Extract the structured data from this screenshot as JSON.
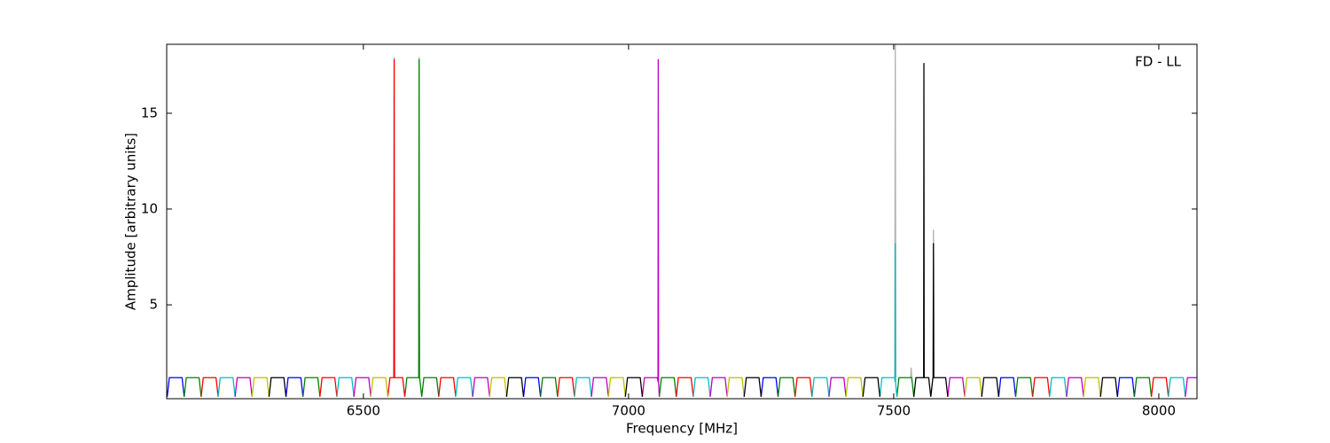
{
  "chart_data": {
    "type": "line",
    "xlabel": "Frequency [MHz]",
    "ylabel": "Amplitude [arbitrary units]",
    "annotation": "FD - LL",
    "xlim": [
      6129,
      8072
    ],
    "ylim": [
      0.1,
      18.6
    ],
    "xticks": [
      6500,
      7000,
      7500,
      8000
    ],
    "yticks": [
      5,
      10,
      15
    ],
    "series": [
      {
        "color": "#b0b0b0",
        "x": [
          6557,
          6558,
          6559,
          null,
          6604,
          6605,
          6606,
          null,
          7502,
          7503,
          7504,
          null,
          7532,
          7533,
          7534,
          null,
          7574,
          7575,
          7576
        ],
        "values": [
          1.2,
          17.9,
          1.2,
          null,
          1.2,
          17.9,
          1.2,
          null,
          1.2,
          18.6,
          1.2,
          null,
          1.2,
          1.7,
          1.2,
          null,
          1.2,
          8.9,
          1.2
        ]
      },
      {
        "color": "#0000ff",
        "x": [
          6130,
          6134,
          6158,
          6162,
          null,
          6354,
          6358,
          6382,
          6386,
          null,
          6802,
          6806,
          6830,
          6834,
          null,
          7250,
          7254,
          7278,
          7282,
          null,
          7698,
          7702,
          7726,
          7730,
          null,
          7922,
          7926,
          7950,
          7954
        ],
        "values": [
          0.2,
          1.2,
          1.2,
          0.2,
          null,
          0.2,
          1.2,
          1.2,
          0.2,
          null,
          0.2,
          1.2,
          1.2,
          0.2,
          null,
          0.2,
          1.2,
          1.2,
          0.2,
          null,
          0.2,
          1.2,
          1.2,
          0.2,
          null,
          0.2,
          1.2,
          1.2,
          0.2
        ]
      },
      {
        "color": "#008000",
        "x": [
          6162,
          6166,
          6190,
          6194,
          null,
          6386,
          6390,
          6414,
          6418,
          null,
          6578,
          6582,
          6604.5,
          6605,
          6605.5,
          6606,
          6610,
          null,
          6610,
          6614,
          6638,
          6642,
          null,
          6834,
          6838,
          6862,
          6866,
          null,
          7058,
          7062,
          7086,
          7090,
          null,
          7282,
          7286,
          7310,
          7314,
          null,
          7506,
          7510,
          7534,
          7538,
          null,
          7730,
          7734,
          7758,
          7762,
          null,
          7954,
          7958,
          7982,
          7986
        ],
        "values": [
          0.2,
          1.2,
          1.2,
          0.2,
          null,
          0.2,
          1.2,
          1.2,
          0.2,
          null,
          0.2,
          1.2,
          1.2,
          17.8,
          1.2,
          1.2,
          0.2,
          null,
          0.2,
          1.2,
          1.2,
          0.2,
          null,
          0.2,
          1.2,
          1.2,
          0.2,
          null,
          0.2,
          1.2,
          1.2,
          0.2,
          null,
          0.2,
          1.2,
          1.2,
          0.2,
          null,
          0.2,
          1.2,
          1.2,
          0.2,
          null,
          0.2,
          1.2,
          1.2,
          0.2,
          null,
          0.2,
          1.2,
          1.2,
          0.2
        ]
      },
      {
        "color": "#ff0000",
        "x": [
          6194,
          6198,
          6222,
          6226,
          null,
          6418,
          6422,
          6446,
          6450,
          null,
          6546,
          6550,
          6557.5,
          6558,
          6558.5,
          6574,
          6578,
          null,
          6642,
          6646,
          6670,
          6674,
          null,
          6866,
          6870,
          6894,
          6898,
          null,
          7090,
          7094,
          7118,
          7122,
          null,
          7314,
          7318,
          7342,
          7346,
          null,
          7762,
          7766,
          7790,
          7794,
          null,
          7986,
          7990,
          8014,
          8018
        ],
        "values": [
          0.2,
          1.2,
          1.2,
          0.2,
          null,
          0.2,
          1.2,
          1.2,
          0.2,
          null,
          0.2,
          1.2,
          1.2,
          17.8,
          1.2,
          1.2,
          0.2,
          null,
          0.2,
          1.2,
          1.2,
          0.2,
          null,
          0.2,
          1.2,
          1.2,
          0.2,
          null,
          0.2,
          1.2,
          1.2,
          0.2,
          null,
          0.2,
          1.2,
          1.2,
          0.2,
          null,
          0.2,
          1.2,
          1.2,
          0.2,
          null,
          0.2,
          1.2,
          1.2,
          0.2
        ]
      },
      {
        "color": "#00bfbf",
        "x": [
          6226,
          6230,
          6254,
          6258,
          null,
          6450,
          6454,
          6478,
          6482,
          null,
          6674,
          6678,
          6702,
          6706,
          null,
          6898,
          6902,
          6926,
          6930,
          null,
          7122,
          7126,
          7150,
          7154,
          null,
          7346,
          7350,
          7374,
          7378,
          null,
          7474,
          7478,
          7502,
          7502.5,
          7503,
          7503.5,
          7506,
          null,
          7794,
          7798,
          7822,
          7826,
          null,
          8018,
          8022,
          8046,
          8050
        ],
        "values": [
          0.2,
          1.2,
          1.2,
          0.2,
          null,
          0.2,
          1.2,
          1.2,
          0.2,
          null,
          0.2,
          1.2,
          1.2,
          0.2,
          null,
          0.2,
          1.2,
          1.2,
          0.2,
          null,
          0.2,
          1.2,
          1.2,
          0.2,
          null,
          0.2,
          1.2,
          1.2,
          0.2,
          null,
          0.2,
          1.2,
          1.2,
          1.0,
          8.2,
          1.0,
          0.2,
          null,
          0.2,
          1.2,
          1.2,
          0.2,
          null,
          0.2,
          1.2,
          1.2,
          0.2
        ]
      },
      {
        "color": "#bf00bf",
        "x": [
          6258,
          6262,
          6286,
          6290,
          null,
          6482,
          6486,
          6510,
          6514,
          null,
          6706,
          6710,
          6734,
          6738,
          null,
          6930,
          6934,
          6958,
          6962,
          null,
          7026,
          7030,
          7054,
          7055.5,
          7056,
          7056.5,
          7058,
          null,
          7154,
          7158,
          7182,
          7186,
          null,
          7378,
          7382,
          7406,
          7410,
          null,
          7602,
          7606,
          7630,
          7634,
          null,
          7826,
          7830,
          7854,
          7858,
          null,
          8050,
          8054,
          8078,
          8082
        ],
        "values": [
          0.2,
          1.2,
          1.2,
          0.2,
          null,
          0.2,
          1.2,
          1.2,
          0.2,
          null,
          0.2,
          1.2,
          1.2,
          0.2,
          null,
          0.2,
          1.2,
          1.2,
          0.2,
          null,
          0.2,
          1.2,
          1.2,
          1.0,
          17.8,
          1.0,
          0.2,
          null,
          0.2,
          1.2,
          1.2,
          0.2,
          null,
          0.2,
          1.2,
          1.2,
          0.2,
          null,
          0.2,
          1.2,
          1.2,
          0.2,
          null,
          0.2,
          1.2,
          1.2,
          0.2,
          null,
          0.2,
          1.2,
          1.2,
          0.2
        ]
      },
      {
        "color": "#bfbf00",
        "x": [
          6290,
          6294,
          6318,
          6322,
          null,
          6514,
          6518,
          6542,
          6546,
          null,
          6738,
          6742,
          6766,
          6770,
          null,
          6962,
          6966,
          6990,
          6994,
          null,
          7186,
          7190,
          7214,
          7218,
          null,
          7410,
          7414,
          7438,
          7442,
          null,
          7634,
          7638,
          7662,
          7666,
          null,
          7858,
          7862,
          7886,
          7890
        ],
        "values": [
          0.2,
          1.2,
          1.2,
          0.2,
          null,
          0.2,
          1.2,
          1.2,
          0.2,
          null,
          0.2,
          1.2,
          1.2,
          0.2,
          null,
          0.2,
          1.2,
          1.2,
          0.2,
          null,
          0.2,
          1.2,
          1.2,
          0.2,
          null,
          0.2,
          1.2,
          1.2,
          0.2,
          null,
          0.2,
          1.2,
          1.2,
          0.2,
          null,
          0.2,
          1.2,
          1.2,
          0.2
        ]
      },
      {
        "color": "#000000",
        "x": [
          6322,
          6326,
          6350,
          6354,
          null,
          6770,
          6774,
          6798,
          6802,
          null,
          6994,
          6998,
          7022,
          7026,
          null,
          7218,
          7222,
          7246,
          7250,
          null,
          7442,
          7446,
          7470,
          7474,
          null,
          7538,
          7542,
          7556.5,
          7557,
          7557.5,
          7566,
          7570,
          null,
          7570,
          7574,
          7574.5,
          7575,
          7575.5,
          7598,
          7602,
          null,
          7666,
          7670,
          7694,
          7698,
          null,
          7890,
          7894,
          7918,
          7922
        ],
        "values": [
          0.2,
          1.2,
          1.2,
          0.2,
          null,
          0.2,
          1.2,
          1.2,
          0.2,
          null,
          0.2,
          1.2,
          1.2,
          0.2,
          null,
          0.2,
          1.2,
          1.2,
          0.2,
          null,
          0.2,
          1.2,
          1.2,
          0.2,
          null,
          0.2,
          1.2,
          1.2,
          17.6,
          1.2,
          1.2,
          0.2,
          null,
          0.2,
          1.2,
          1.2,
          8.2,
          1.2,
          1.2,
          0.2,
          null,
          0.2,
          1.2,
          1.2,
          0.2,
          null,
          0.2,
          1.2,
          1.2,
          0.2
        ]
      }
    ]
  }
}
